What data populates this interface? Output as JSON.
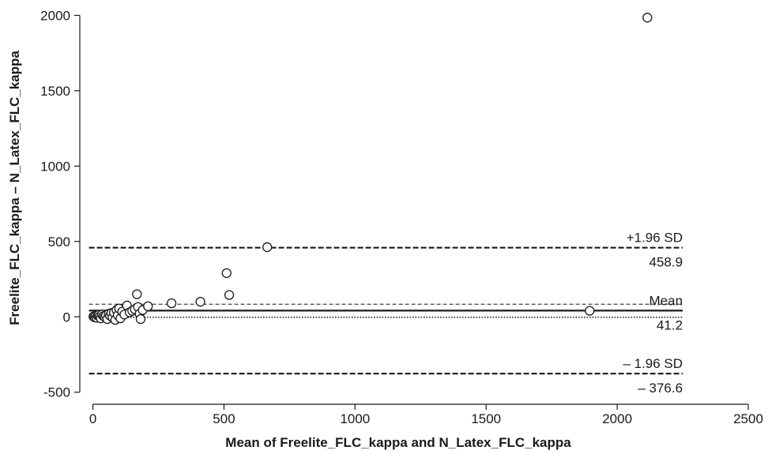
{
  "chart_data": {
    "type": "scatter",
    "title": "",
    "xlabel": "Mean of Freelite_FLC_kappa and N_Latex_FLC_kappa",
    "ylabel": "Freelite_FLC_kappa – N_Latex_FLC_kappa",
    "xlim": [
      -50,
      2500
    ],
    "ylim": [
      -580,
      2060
    ],
    "x_ticks": [
      {
        "value": 0,
        "label": "0"
      },
      {
        "value": 500,
        "label": "500"
      },
      {
        "value": 1000,
        "label": "1000"
      },
      {
        "value": 1500,
        "label": "1500"
      },
      {
        "value": 2000,
        "label": "2000"
      },
      {
        "value": 2500,
        "label": "2500"
      }
    ],
    "y_ticks": [
      {
        "value": -500,
        "label": "-500"
      },
      {
        "value": 0,
        "label": "0"
      },
      {
        "value": 500,
        "label": "500"
      },
      {
        "value": 1000,
        "label": "1000"
      },
      {
        "value": 1500,
        "label": "1500"
      },
      {
        "value": 2000,
        "label": "2000"
      }
    ],
    "grid": false,
    "points": [
      {
        "x": 2,
        "y": 2
      },
      {
        "x": 6,
        "y": -3
      },
      {
        "x": 10,
        "y": 5
      },
      {
        "x": 14,
        "y": -6
      },
      {
        "x": 18,
        "y": 8
      },
      {
        "x": 22,
        "y": 12
      },
      {
        "x": 26,
        "y": 2
      },
      {
        "x": 30,
        "y": -10
      },
      {
        "x": 35,
        "y": 15
      },
      {
        "x": 40,
        "y": 5
      },
      {
        "x": 45,
        "y": 0
      },
      {
        "x": 50,
        "y": 10
      },
      {
        "x": 55,
        "y": -15
      },
      {
        "x": 60,
        "y": 20
      },
      {
        "x": 65,
        "y": 8
      },
      {
        "x": 70,
        "y": 25
      },
      {
        "x": 75,
        "y": -5
      },
      {
        "x": 80,
        "y": 30
      },
      {
        "x": 85,
        "y": -20
      },
      {
        "x": 90,
        "y": 45
      },
      {
        "x": 95,
        "y": 10
      },
      {
        "x": 100,
        "y": 55
      },
      {
        "x": 105,
        "y": -10
      },
      {
        "x": 112,
        "y": 35
      },
      {
        "x": 120,
        "y": 15
      },
      {
        "x": 130,
        "y": 75
      },
      {
        "x": 140,
        "y": 30
      },
      {
        "x": 150,
        "y": 40
      },
      {
        "x": 160,
        "y": 50
      },
      {
        "x": 168,
        "y": 150
      },
      {
        "x": 172,
        "y": 65
      },
      {
        "x": 178,
        "y": 20
      },
      {
        "x": 182,
        "y": -15
      },
      {
        "x": 190,
        "y": 45
      },
      {
        "x": 210,
        "y": 70
      },
      {
        "x": 300,
        "y": 90
      },
      {
        "x": 410,
        "y": 100
      },
      {
        "x": 510,
        "y": 290
      },
      {
        "x": 520,
        "y": 145
      },
      {
        "x": 665,
        "y": 462
      },
      {
        "x": 1895,
        "y": 40
      },
      {
        "x": 2115,
        "y": 1985
      }
    ],
    "reference_lines": [
      {
        "name": "+1.96 SD",
        "value": 458.9,
        "value_label": "458.9",
        "style": "dashed-bold"
      },
      {
        "name": "Mean",
        "value": 41.2,
        "value_label": "41.2",
        "style": "solid"
      },
      {
        "name": "– 1.96 SD",
        "value": -376.6,
        "value_label": "– 376.6",
        "style": "dashed-bold"
      },
      {
        "name": "",
        "value": 84,
        "value_label": "",
        "style": "dashed-thin"
      },
      {
        "name": "",
        "value": -3,
        "value_label": "",
        "style": "dotted"
      }
    ],
    "reference_line_extent": [
      -15,
      2250
    ],
    "colors": {
      "axis": "#1a1a1a",
      "marker_fill": "#ffffff",
      "marker_stroke": "#1a1a1a"
    }
  }
}
